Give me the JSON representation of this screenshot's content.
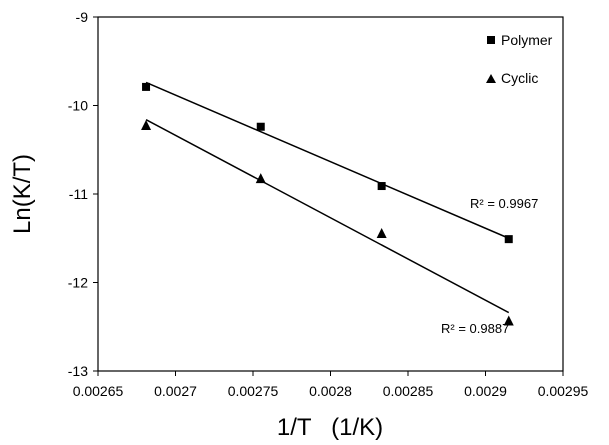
{
  "chart_data": {
    "type": "scatter",
    "title": "",
    "xlabel": "1/T   (1/K)",
    "ylabel": "Ln(K/T)",
    "xlim": [
      0.00265,
      0.00295
    ],
    "ylim": [
      -13,
      -9
    ],
    "xticks": [
      0.00265,
      0.0027,
      0.00275,
      0.0028,
      0.00285,
      0.0029,
      0.00295
    ],
    "xtick_labels": [
      "0.00265",
      "0.0027",
      "0.00275",
      "0.0028",
      "0.00285",
      "0.0029",
      "0.00295"
    ],
    "yticks": [
      -13,
      -12,
      -11,
      -10,
      -9
    ],
    "ytick_labels": [
      "-13",
      "-12",
      "-11",
      "-10",
      "-9"
    ],
    "grid": false,
    "legend_position": "top-right",
    "series": [
      {
        "name": "Polymer",
        "marker": "square",
        "color": "#000000",
        "x": [
          0.002681,
          0.002755,
          0.002833,
          0.002915
        ],
        "y": [
          -9.79,
          -10.24,
          -10.91,
          -11.51
        ],
        "trendline": {
          "x": [
            0.002681,
            0.002915
          ],
          "y": [
            -9.74,
            -11.5
          ]
        },
        "r2_label": "R² = 0.9967"
      },
      {
        "name": "Cyclic",
        "marker": "triangle",
        "color": "#000000",
        "x": [
          0.002681,
          0.002755,
          0.002833,
          0.002915
        ],
        "y": [
          -10.22,
          -10.82,
          -11.44,
          -12.43
        ],
        "trendline": {
          "x": [
            0.002681,
            0.002915
          ],
          "y": [
            -10.16,
            -12.34
          ]
        },
        "r2_label": "R² = 0.9887"
      }
    ]
  }
}
